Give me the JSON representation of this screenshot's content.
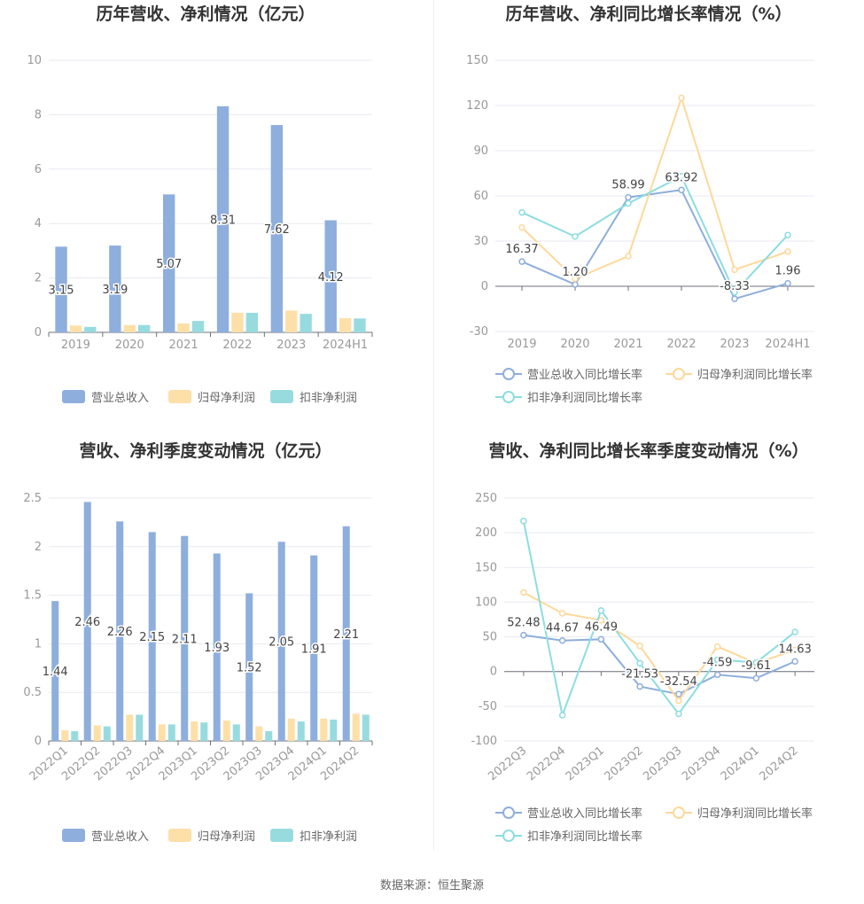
{
  "source_text": "数据来源：恒生聚源",
  "colors": {
    "revenue": "#8eaedd",
    "net_profit": "#fde0a8",
    "deducted_profit": "#98dbdf",
    "line_revenue": "#8eaedd",
    "line_net": "#fdd89a",
    "line_deducted": "#8cdde1"
  },
  "chart_data": [
    {
      "type": "bar",
      "title": "历年营收、净利情况（亿元）",
      "categories": [
        "2019",
        "2020",
        "2021",
        "2022",
        "2023",
        "2024H1"
      ],
      "ylim": [
        0,
        10
      ],
      "yticks": [
        "0",
        "2",
        "4",
        "6",
        "8",
        "10"
      ],
      "series": [
        {
          "name": "营业总收入",
          "values": [
            3.15,
            3.19,
            5.07,
            8.31,
            7.62,
            4.12
          ],
          "labels": [
            "3.15",
            "3.19",
            "5.07",
            "8.31",
            "7.62",
            "4.12"
          ]
        },
        {
          "name": "归母净利润",
          "values": [
            0.25,
            0.27,
            0.33,
            0.72,
            0.8,
            0.52
          ]
        },
        {
          "name": "扣非净利润",
          "values": [
            0.2,
            0.27,
            0.42,
            0.72,
            0.68,
            0.51
          ]
        }
      ],
      "legend": "bottom"
    },
    {
      "type": "line",
      "title": "历年营收、净利同比增长率情况（%）",
      "categories": [
        "2019",
        "2020",
        "2021",
        "2022",
        "2023",
        "2024H1"
      ],
      "ylim": [
        -30,
        150
      ],
      "yticks": [
        "-30",
        "0",
        "30",
        "60",
        "90",
        "120",
        "150"
      ],
      "series": [
        {
          "name": "营业总收入同比增长率",
          "values": [
            16.37,
            1.2,
            58.99,
            63.92,
            -8.33,
            1.96
          ],
          "labels": [
            "16.37",
            "1.20",
            "58.99",
            "63.92",
            "-8.33",
            "1.96"
          ]
        },
        {
          "name": "归母净利润同比增长率",
          "values": [
            39,
            5,
            20,
            125,
            11,
            23
          ]
        },
        {
          "name": "扣非净利润同比增长率",
          "values": [
            49,
            33,
            55,
            73,
            -4,
            34
          ]
        }
      ],
      "legend": "bottom"
    },
    {
      "type": "bar",
      "title": "营收、净利季度变动情况（亿元）",
      "categories": [
        "2022Q1",
        "2022Q2",
        "2022Q3",
        "2022Q4",
        "2023Q1",
        "2023Q2",
        "2023Q3",
        "2023Q4",
        "2024Q1",
        "2024Q2"
      ],
      "ylim": [
        0,
        2.5
      ],
      "yticks": [
        "0",
        "0.5",
        "1",
        "1.5",
        "2",
        "2.5"
      ],
      "series": [
        {
          "name": "营业总收入",
          "values": [
            1.44,
            2.46,
            2.26,
            2.15,
            2.11,
            1.93,
            1.52,
            2.05,
            1.91,
            2.21
          ],
          "labels": [
            "1.44",
            "2.46",
            "2.26",
            "2.15",
            "2.11",
            "1.93",
            "1.52",
            "2.05",
            "1.91",
            "2.21"
          ]
        },
        {
          "name": "归母净利润",
          "values": [
            0.11,
            0.16,
            0.27,
            0.17,
            0.2,
            0.21,
            0.15,
            0.23,
            0.23,
            0.28
          ]
        },
        {
          "name": "扣非净利润",
          "values": [
            0.1,
            0.15,
            0.27,
            0.17,
            0.19,
            0.17,
            0.1,
            0.2,
            0.22,
            0.27
          ]
        }
      ],
      "legend": "bottom"
    },
    {
      "type": "line",
      "title": "营收、净利同比增长率季度变动情况（%）",
      "categories": [
        "2022Q3",
        "2022Q4",
        "2023Q1",
        "2023Q2",
        "2023Q3",
        "2023Q4",
        "2024Q1",
        "2024Q2"
      ],
      "ylim": [
        -100,
        250
      ],
      "yticks": [
        "-100",
        "-50",
        "0",
        "50",
        "100",
        "150",
        "200",
        "250"
      ],
      "series": [
        {
          "name": "营业总收入同比增长率",
          "values": [
            52.48,
            44.67,
            46.49,
            -21.53,
            -32.54,
            -4.59,
            -9.61,
            14.63
          ],
          "labels": [
            "52.48",
            "44.67",
            "46.49",
            "-21.53",
            "-32.54",
            "-4.59",
            "-9.61",
            "14.63"
          ]
        },
        {
          "name": "归母净利润同比增长率",
          "values": [
            114,
            84,
            74,
            37,
            -42,
            36,
            12,
            31
          ]
        },
        {
          "name": "扣非净利润同比增长率",
          "values": [
            217,
            -63,
            88,
            12,
            -61,
            17,
            13,
            57
          ]
        }
      ],
      "legend": "bottom"
    }
  ]
}
